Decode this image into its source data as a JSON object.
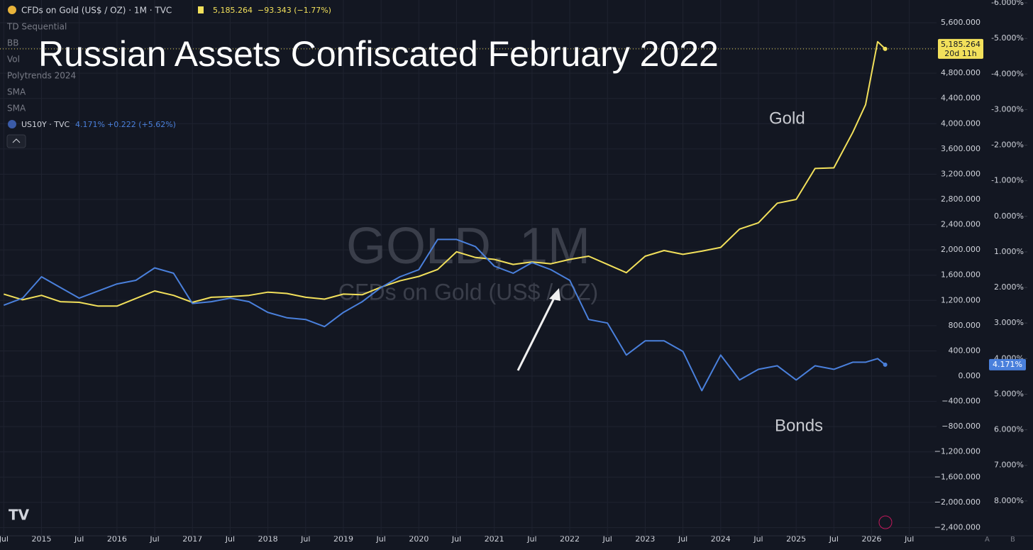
{
  "header": {
    "symbol": "CFDs on Gold (US$ / OZ) · 1M · TVC",
    "price": "5,185.264",
    "change": "−93.343 (−1.77%)",
    "countdown": "20d 11h",
    "indicators": [
      "TD Sequential",
      "BB",
      "Vol",
      "Polytrends 2024",
      "SMA",
      "SMA"
    ],
    "us10y_symbol": "US10Y · TVC",
    "us10y_value": "4.171%",
    "us10y_change": "+0.222 (+5.62%)",
    "watermark_title": "GOLD, 1M",
    "watermark_subtitle": "CFDs on Gold (US$ / OZ)",
    "corner_labels": [
      "A",
      "B"
    ]
  },
  "chart_data": {
    "type": "line",
    "title": "Russian Assets Confiscated February 2022",
    "annotations": [
      "Gold",
      "Bonds"
    ],
    "x": [
      2014.5,
      2014.75,
      2015.0,
      2015.25,
      2015.5,
      2015.75,
      2016.0,
      2016.25,
      2016.5,
      2016.75,
      2017.0,
      2017.25,
      2017.5,
      2017.75,
      2018.0,
      2018.25,
      2018.5,
      2018.75,
      2019.0,
      2019.25,
      2019.5,
      2019.75,
      2020.0,
      2020.25,
      2020.5,
      2020.75,
      2021.0,
      2021.25,
      2021.5,
      2021.75,
      2022.0,
      2022.25,
      2022.5,
      2022.75,
      2023.0,
      2023.25,
      2023.5,
      2023.75,
      2024.0,
      2024.25,
      2024.5,
      2024.75,
      2025.0,
      2025.25,
      2025.5,
      2025.75,
      2025.92,
      2026.08,
      2026.18
    ],
    "series": [
      {
        "name": "CFDs on Gold",
        "color": "#f2e05b",
        "values": [
          1300,
          1210,
          1280,
          1180,
          1170,
          1110,
          1110,
          1230,
          1350,
          1280,
          1170,
          1250,
          1260,
          1280,
          1330,
          1310,
          1250,
          1220,
          1300,
          1290,
          1410,
          1510,
          1580,
          1690,
          1970,
          1880,
          1850,
          1770,
          1810,
          1780,
          1850,
          1900,
          1770,
          1640,
          1900,
          1990,
          1930,
          1980,
          2040,
          2330,
          2430,
          2740,
          2800,
          3290,
          3300,
          3860,
          4300,
          5300,
          5185.264
        ]
      },
      {
        "name": "US10Y",
        "color": "#4a80dc",
        "axis": "y2",
        "values": [
          2.5,
          2.3,
          1.7,
          2.0,
          2.3,
          2.1,
          1.9,
          1.8,
          1.45,
          1.6,
          2.45,
          2.4,
          2.3,
          2.4,
          2.7,
          2.85,
          2.9,
          3.1,
          2.7,
          2.4,
          2.0,
          1.7,
          1.5,
          0.65,
          0.65,
          0.85,
          1.4,
          1.6,
          1.3,
          1.5,
          1.8,
          2.9,
          3.0,
          3.9,
          3.5,
          3.5,
          3.8,
          4.9,
          3.9,
          4.6,
          4.3,
          4.2,
          4.6,
          4.2,
          4.3,
          4.1,
          4.1,
          4.0,
          4.171
        ]
      }
    ],
    "xlim": [
      2014.45,
      2026.86
    ],
    "xticks": [
      {
        "value": 2014.5,
        "label": "Jul"
      },
      2015,
      {
        "value": 2015.5,
        "label": "Jul"
      },
      2016,
      {
        "value": 2016.5,
        "label": "Jul"
      },
      2017,
      {
        "value": 2017.5,
        "label": "Jul"
      },
      2018,
      {
        "value": 2018.5,
        "label": "Jul"
      },
      2019,
      {
        "value": 2019.5,
        "label": "Jul"
      },
      2020,
      {
        "value": 2020.5,
        "label": "Jul"
      },
      2021,
      {
        "value": 2021.5,
        "label": "Jul"
      },
      2022,
      {
        "value": 2022.5,
        "label": "Jul"
      },
      2023,
      {
        "value": 2023.5,
        "label": "Jul"
      },
      2024,
      {
        "value": 2024.5,
        "label": "Jul"
      },
      2025,
      {
        "value": 2025.5,
        "label": "Jul"
      },
      2026,
      {
        "value": 2026.5,
        "label": "Jul"
      }
    ],
    "ylim": [
      -2530,
      5960
    ],
    "yticks": [
      {
        "value": -2400,
        "label": "−2,400.000"
      },
      {
        "value": -2000,
        "label": "−2,000.000"
      },
      {
        "value": -1600,
        "label": "−1,600.000"
      },
      {
        "value": -1200,
        "label": "−1,200.000"
      },
      {
        "value": -800,
        "label": "−800.000"
      },
      {
        "value": -400,
        "label": "−400.000"
      },
      {
        "value": 0,
        "label": "0.000"
      },
      {
        "value": 400,
        "label": "400.000"
      },
      {
        "value": 800,
        "label": "800.000"
      },
      {
        "value": 1200,
        "label": "1,200.000"
      },
      {
        "value": 1600,
        "label": "1,600.000"
      },
      {
        "value": 2000,
        "label": "2,000.000"
      },
      {
        "value": 2400,
        "label": "2,400.000"
      },
      {
        "value": 2800,
        "label": "2,800.000"
      },
      {
        "value": 3200,
        "label": "3,200.000"
      },
      {
        "value": 3600,
        "label": "3,600.000"
      },
      {
        "value": 4000,
        "label": "4,000.000"
      },
      {
        "value": 4400,
        "label": "4,400.000"
      },
      {
        "value": 4800,
        "label": "4,800.000"
      },
      {
        "value": 5200,
        "label": "5,200.000"
      },
      {
        "value": 5600,
        "label": "5,600.000"
      }
    ],
    "y2lim": [
      -6.08,
      8.98
    ],
    "y2_inverted": true,
    "y2ticks": [
      {
        "value": -6,
        "label": "-6.000%"
      },
      {
        "value": -5,
        "label": "-5.000%"
      },
      {
        "value": -4,
        "label": "-4.000%"
      },
      {
        "value": -3,
        "label": "-3.000%"
      },
      {
        "value": -2,
        "label": "-2.000%"
      },
      {
        "value": -1,
        "label": "-1.000%"
      },
      {
        "value": 0,
        "label": "0.000%"
      },
      {
        "value": 1,
        "label": "1.000%"
      },
      {
        "value": 2,
        "label": "2.000%"
      },
      {
        "value": 3,
        "label": "3.000%"
      },
      {
        "value": 4,
        "label": "4.000%"
      },
      {
        "value": 5,
        "label": "5.000%"
      },
      {
        "value": 6,
        "label": "6.000%"
      },
      {
        "value": 7,
        "label": "7.000%"
      },
      {
        "value": 8,
        "label": "8.000%"
      }
    ],
    "grid": true
  }
}
